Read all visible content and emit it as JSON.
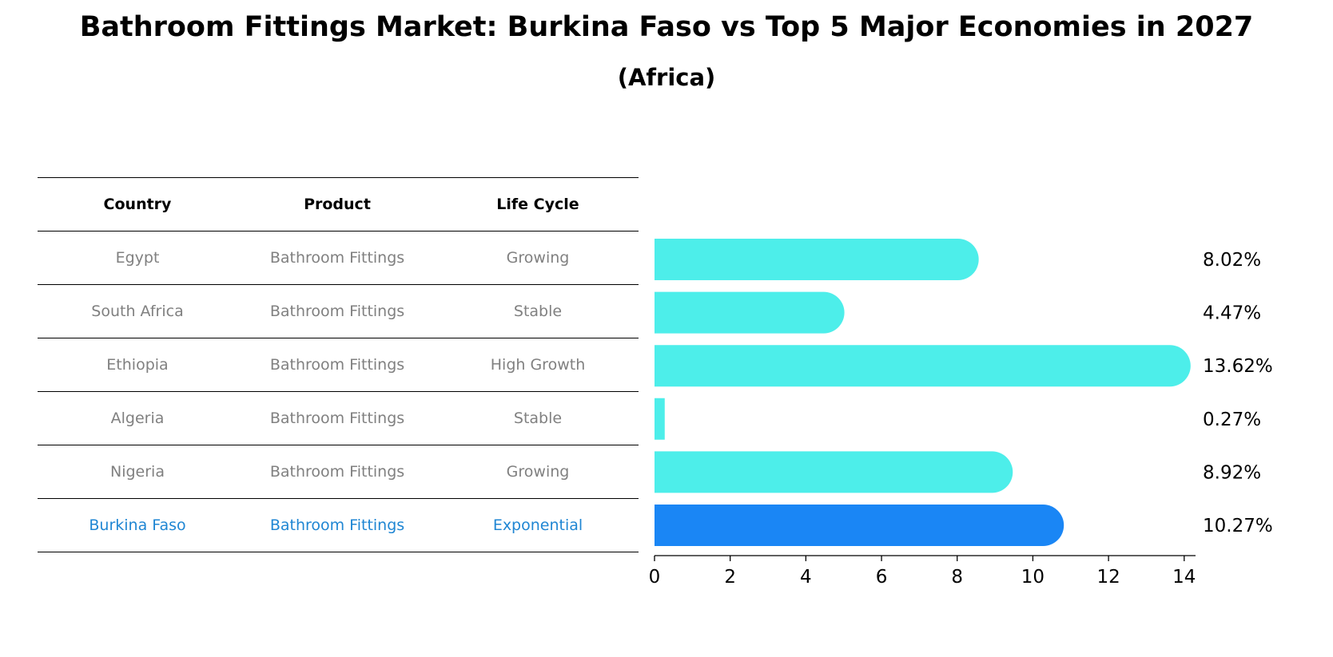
{
  "header": {
    "title": "Bathroom Fittings Market: Burkina Faso vs Top 5 Major Economies in 2027",
    "subtitle": "(Africa)"
  },
  "table": {
    "columns": [
      "Country",
      "Product",
      "Life Cycle"
    ],
    "rows": [
      [
        "Egypt",
        "Bathroom Fittings",
        "Growing"
      ],
      [
        "South Africa",
        "Bathroom Fittings",
        "Stable"
      ],
      [
        "Ethiopia",
        "Bathroom Fittings",
        "High Growth"
      ],
      [
        "Algeria",
        "Bathroom Fittings",
        "Stable"
      ],
      [
        "Nigeria",
        "Bathroom Fittings",
        "Growing"
      ],
      [
        "Burkina Faso",
        "Bathroom Fittings",
        "Exponential"
      ]
    ]
  },
  "chart_data": {
    "type": "bar",
    "orientation": "horizontal",
    "categories": [
      "Egypt",
      "South Africa",
      "Ethiopia",
      "Algeria",
      "Nigeria",
      "Burkina Faso"
    ],
    "values": [
      8.02,
      4.47,
      13.62,
      0.27,
      8.92,
      10.27
    ],
    "value_labels": [
      "8.02%",
      "4.47%",
      "13.62%",
      "0.27%",
      "8.92%",
      "10.27%"
    ],
    "highlight_index": 5,
    "xlim": [
      0,
      14.3
    ],
    "xticks": [
      0,
      2,
      4,
      6,
      8,
      10,
      12,
      14
    ],
    "grid": false,
    "colors": {
      "bar": "#4deeea",
      "highlight": "#1a86f5",
      "axis": "#000000",
      "label": "#000000"
    }
  }
}
